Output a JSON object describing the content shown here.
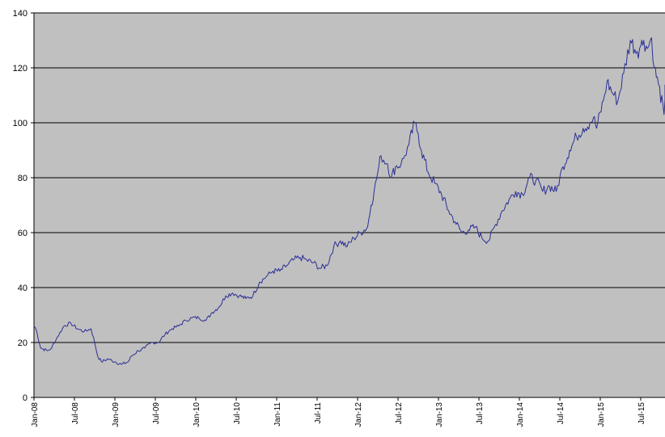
{
  "chart_data": {
    "type": "line",
    "title": "",
    "xlabel": "",
    "ylabel": "",
    "ylim": [
      0,
      140
    ],
    "xlim": [
      "2008-01-01",
      "2015-12-01"
    ],
    "grid": {
      "horizontal": true,
      "vertical": false
    },
    "legend": "none",
    "colors": {
      "plot_background": "#c0c0c0",
      "series_line": "#2b2f94",
      "gridline": "#000000",
      "axis": "#000000"
    },
    "y_ticks": [
      "0",
      "20",
      "40",
      "60",
      "80",
      "100",
      "120",
      "140"
    ],
    "x_ticks": [
      "Jan-08",
      "Jul-08",
      "Jan-09",
      "Jul-09",
      "Jan-10",
      "Jul-10",
      "Jan-11",
      "Jul-11",
      "Jan-12",
      "Jul-12",
      "Jan-13",
      "Jul-13",
      "Jan-14",
      "Jul-14",
      "Jan-15",
      "Jul-15"
    ],
    "series": [
      {
        "x": [
          "2008-01-01",
          "2008-01-10",
          "2008-02-01",
          "2008-03-01",
          "2008-03-20",
          "2008-04-15",
          "2008-05-15",
          "2008-06-15",
          "2008-07-15",
          "2008-08-15",
          "2008-09-15",
          "2008-10-01",
          "2008-10-15",
          "2008-11-01",
          "2008-12-01",
          "2009-01-01",
          "2009-02-01",
          "2009-03-01",
          "2009-03-15",
          "2009-04-15",
          "2009-05-15",
          "2009-06-15",
          "2009-07-15",
          "2009-08-15",
          "2009-09-15",
          "2009-10-15",
          "2009-11-15",
          "2009-12-15",
          "2010-01-15",
          "2010-02-15",
          "2010-03-15",
          "2010-04-15",
          "2010-05-15",
          "2010-06-15",
          "2010-07-15",
          "2010-08-15",
          "2010-09-15",
          "2010-10-15",
          "2010-11-15",
          "2010-12-15",
          "2011-01-15",
          "2011-02-15",
          "2011-03-15",
          "2011-04-15",
          "2011-05-15",
          "2011-06-15",
          "2011-07-15",
          "2011-08-15",
          "2011-09-15",
          "2011-10-15",
          "2011-11-15",
          "2011-12-15",
          "2012-01-15",
          "2012-02-15",
          "2012-03-01",
          "2012-03-15",
          "2012-04-01",
          "2012-04-15",
          "2012-05-15",
          "2012-06-01",
          "2012-06-20",
          "2012-07-15",
          "2012-08-01",
          "2012-08-20",
          "2012-09-15",
          "2012-10-01",
          "2012-10-15",
          "2012-11-15",
          "2012-12-15",
          "2013-01-15",
          "2013-02-15",
          "2013-03-15",
          "2013-04-15",
          "2013-05-15",
          "2013-06-15",
          "2013-07-15",
          "2013-08-15",
          "2013-09-15",
          "2013-10-15",
          "2013-11-15",
          "2013-12-15",
          "2014-01-15",
          "2014-02-15",
          "2014-03-15",
          "2014-04-15",
          "2014-05-15",
          "2014-06-15",
          "2014-07-15",
          "2014-08-15",
          "2014-09-15",
          "2014-10-15",
          "2014-11-15",
          "2014-12-01",
          "2014-12-15",
          "2015-01-15",
          "2015-02-01",
          "2015-03-01",
          "2015-03-20",
          "2015-04-15",
          "2015-05-15",
          "2015-06-15",
          "2015-07-01",
          "2015-07-15",
          "2015-08-01",
          "2015-08-20",
          "2015-09-01",
          "2015-09-20",
          "2015-10-15",
          "2015-11-01",
          "2015-12-01"
        ],
        "y": [
          26,
          25,
          18,
          17,
          18,
          22,
          26,
          27,
          25,
          24,
          25,
          20,
          15,
          13,
          14,
          13,
          12,
          13,
          15,
          17,
          18,
          20,
          20,
          23,
          25,
          26,
          28,
          29,
          29,
          28,
          31,
          33,
          37,
          38,
          37,
          36,
          37,
          42,
          44,
          46,
          46,
          48,
          50,
          51,
          50,
          49,
          47,
          48,
          55,
          57,
          55,
          58,
          60,
          62,
          70,
          75,
          82,
          88,
          85,
          80,
          84,
          85,
          88,
          92,
          100,
          96,
          90,
          82,
          78,
          74,
          68,
          64,
          60,
          61,
          62,
          58,
          57,
          63,
          68,
          72,
          75,
          74,
          80,
          79,
          75,
          77,
          75,
          84,
          90,
          95,
          98,
          100,
          102,
          98,
          108,
          115,
          110,
          108,
          118,
          130,
          126,
          128,
          130,
          127,
          131,
          120,
          114,
          103,
          112,
          111
        ]
      }
    ]
  }
}
